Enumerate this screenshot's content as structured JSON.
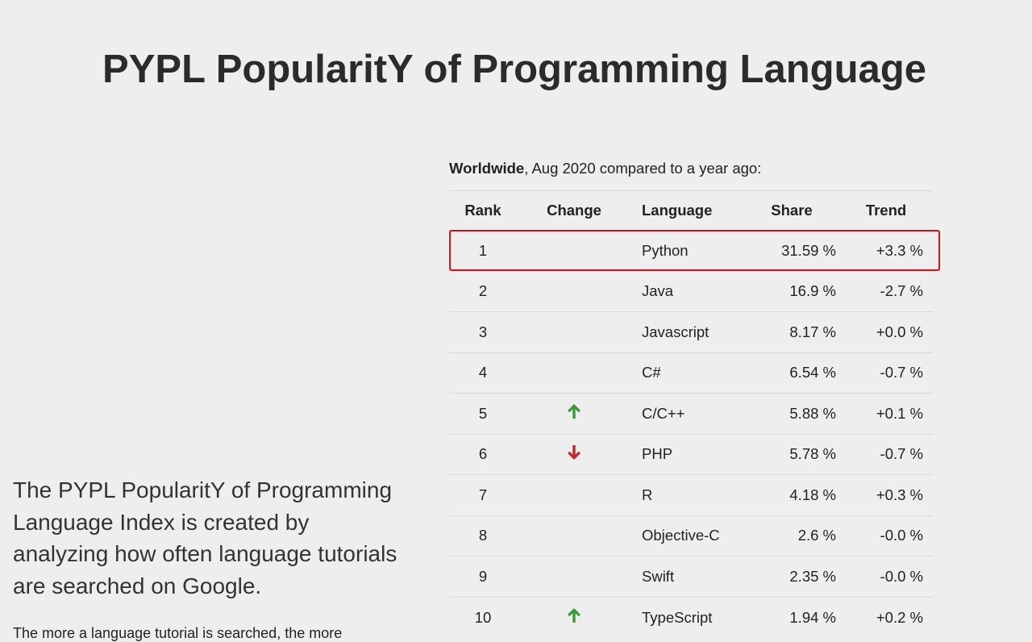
{
  "page": {
    "title": "PYPL PopularitY of Programming Language",
    "intro": "The PYPL PopularitY of Programming Language Index is created by analyzing how often language tutorials are searched on Google.",
    "more": "The more a language tutorial is searched, the more"
  },
  "caption": {
    "region": "Worldwide",
    "rest": ", Aug 2020 compared to a year ago:"
  },
  "table": {
    "headers": {
      "rank": "Rank",
      "change": "Change",
      "language": "Language",
      "share": "Share",
      "trend": "Trend"
    },
    "rows": [
      {
        "rank": "1",
        "change": "",
        "language": "Python",
        "share": "31.59 %",
        "trend": "+3.3 %"
      },
      {
        "rank": "2",
        "change": "",
        "language": "Java",
        "share": "16.9 %",
        "trend": "-2.7 %"
      },
      {
        "rank": "3",
        "change": "",
        "language": "Javascript",
        "share": "8.17 %",
        "trend": "+0.0 %"
      },
      {
        "rank": "4",
        "change": "",
        "language": "C#",
        "share": "6.54 %",
        "trend": "-0.7 %"
      },
      {
        "rank": "5",
        "change": "up",
        "language": "C/C++",
        "share": "5.88 %",
        "trend": "+0.1 %"
      },
      {
        "rank": "6",
        "change": "down",
        "language": "PHP",
        "share": "5.78 %",
        "trend": "-0.7 %"
      },
      {
        "rank": "7",
        "change": "",
        "language": "R",
        "share": "4.18 %",
        "trend": "+0.3 %"
      },
      {
        "rank": "8",
        "change": "",
        "language": "Objective-C",
        "share": "2.6 %",
        "trend": "-0.0 %"
      },
      {
        "rank": "9",
        "change": "",
        "language": "Swift",
        "share": "2.35 %",
        "trend": "-0.0 %"
      },
      {
        "rank": "10",
        "change": "up",
        "language": "TypeScript",
        "share": "1.94 %",
        "trend": "+0.2 %"
      }
    ]
  },
  "icons": {
    "up": "arrow-up-icon",
    "down": "arrow-down-icon"
  },
  "colors": {
    "background": "#eeeeee",
    "up_arrow": "#3a9a3a",
    "down_arrow": "#c0282b",
    "highlight_border": "#d0161c"
  }
}
